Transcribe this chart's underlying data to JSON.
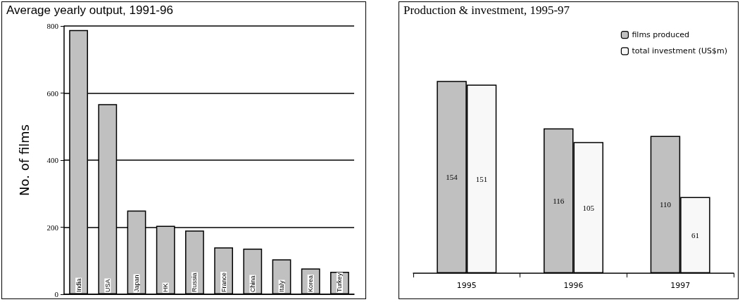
{
  "chart_data": [
    {
      "type": "bar",
      "title": "Average yearly output, 1991-96",
      "ylabel": "No. of films",
      "categories": [
        "India",
        "USA",
        "Japan",
        "HK",
        "Russia",
        "France",
        "China",
        "Italy",
        "Korea",
        "Turkey"
      ],
      "values": [
        788,
        567,
        250,
        204,
        190,
        140,
        136,
        104,
        77,
        67
      ],
      "color": "#c0c0c0",
      "ylim": [
        0,
        800
      ],
      "yticks": [
        0,
        200,
        400,
        600,
        800
      ],
      "grid": "y"
    },
    {
      "type": "bar",
      "title": "Production & investment, 1995-97",
      "categories": [
        "1995",
        "1996",
        "1997"
      ],
      "series": [
        {
          "name": "films produced",
          "color": "#c0c0c0",
          "values": [
            154,
            116,
            110
          ]
        },
        {
          "name": "total investment (US$m)",
          "color": "#f8f8f8",
          "values": [
            151,
            105,
            61
          ]
        }
      ],
      "data_labels": true,
      "legend": "top right"
    }
  ]
}
